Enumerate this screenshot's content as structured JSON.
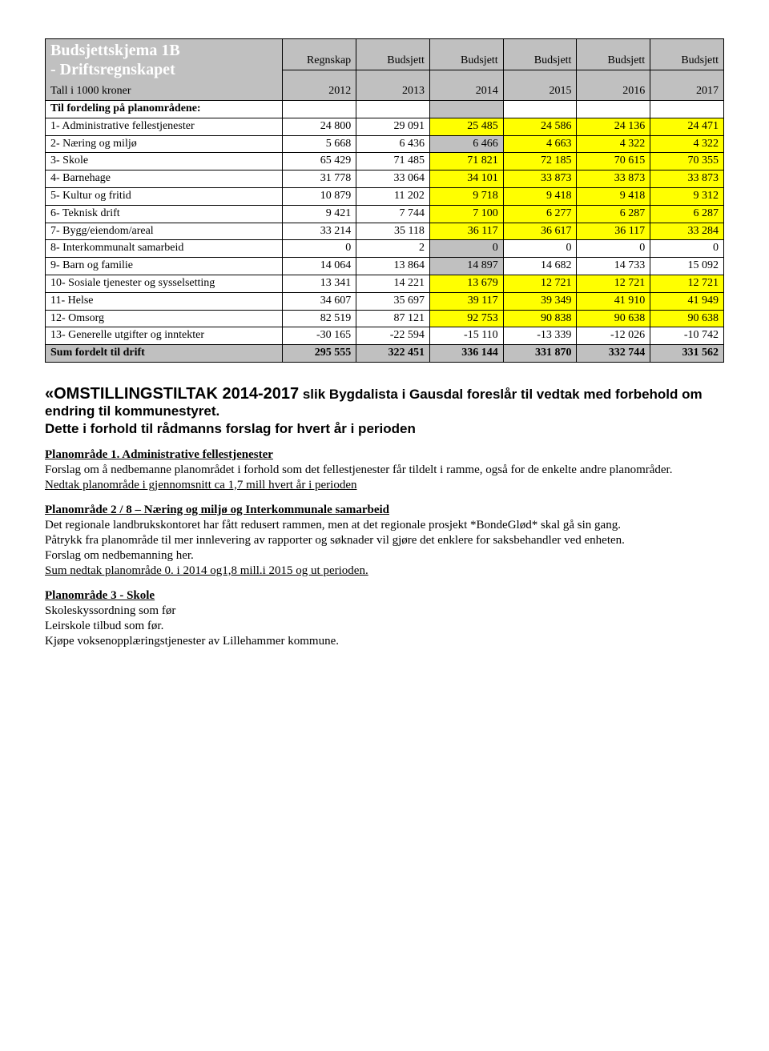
{
  "table": {
    "title_line1": "Budsjettskjema 1B",
    "title_line2": "- Driftsregnskapet",
    "subhead": "Tall i 1000 kroner",
    "col_headers": [
      {
        "l1": "Regnskap",
        "l2": "2012"
      },
      {
        "l1": "Budsjett",
        "l2": "2013"
      },
      {
        "l1": "Budsjett",
        "l2": "2014"
      },
      {
        "l1": "Budsjett",
        "l2": "2015"
      },
      {
        "l1": "Budsjett",
        "l2": "2016"
      },
      {
        "l1": "Budsjett",
        "l2": "2017"
      }
    ],
    "section_row": "Til fordeling på planområdene:",
    "rows": [
      {
        "label": "1- Administrative fellestjenester",
        "vals": [
          "24 800",
          "29 091",
          "25 485",
          "24 586",
          "24 136",
          "24 471"
        ],
        "hl": [
          false,
          false,
          true,
          true,
          true,
          true
        ]
      },
      {
        "label": "2- Næring og miljø",
        "vals": [
          "5 668",
          "6 436",
          "6 466",
          "4 663",
          "4 322",
          "4 322"
        ],
        "hl": [
          false,
          false,
          false,
          true,
          true,
          true
        ],
        "gray3": true
      },
      {
        "label": "3- Skole",
        "vals": [
          "65 429",
          "71 485",
          "71 821",
          "72 185",
          "70 615",
          "70 355"
        ],
        "hl": [
          false,
          false,
          true,
          true,
          true,
          true
        ]
      },
      {
        "label": "4- Barnehage",
        "vals": [
          "31 778",
          "33 064",
          "34 101",
          "33 873",
          "33 873",
          "33 873"
        ],
        "hl": [
          false,
          false,
          true,
          true,
          true,
          true
        ]
      },
      {
        "label": "5- Kultur og fritid",
        "vals": [
          "10 879",
          "11 202",
          "9 718",
          "9 418",
          "9 418",
          "9 312"
        ],
        "hl": [
          false,
          false,
          true,
          true,
          true,
          true
        ]
      },
      {
        "label": "6- Teknisk drift",
        "vals": [
          "9 421",
          "7 744",
          "7 100",
          "6 277",
          "6 287",
          "6 287"
        ],
        "hl": [
          false,
          false,
          true,
          true,
          true,
          true
        ]
      },
      {
        "label": "7- Bygg/eiendom/areal",
        "vals": [
          "33 214",
          "35 118",
          "36 117",
          "36 617",
          "36 117",
          "33 284"
        ],
        "hl": [
          false,
          false,
          true,
          true,
          true,
          true
        ]
      },
      {
        "label": "8- Interkommunalt samarbeid",
        "vals": [
          "0",
          "2",
          "0",
          "0",
          "0",
          "0"
        ],
        "hl": [
          false,
          false,
          false,
          false,
          false,
          false
        ],
        "gray3": true
      },
      {
        "label": "9- Barn og familie",
        "vals": [
          "14 064",
          "13 864",
          "14 897",
          "14 682",
          "14 733",
          "15 092"
        ],
        "hl": [
          false,
          false,
          false,
          false,
          false,
          false
        ],
        "gray3": true
      },
      {
        "label": "10- Sosiale tjenester og sysselsetting",
        "vals": [
          "13 341",
          "14 221",
          "13 679",
          "12 721",
          "12 721",
          "12 721"
        ],
        "hl": [
          false,
          false,
          true,
          true,
          true,
          true
        ]
      },
      {
        "label": "11- Helse",
        "vals": [
          "34 607",
          "35 697",
          "39 117",
          "39 349",
          "41 910",
          "41 949"
        ],
        "hl": [
          false,
          false,
          true,
          true,
          true,
          true
        ]
      },
      {
        "label": "12- Omsorg",
        "vals": [
          "82 519",
          "87 121",
          "92 753",
          "90 838",
          "90 638",
          "90 638"
        ],
        "hl": [
          false,
          false,
          true,
          true,
          true,
          true
        ]
      },
      {
        "label": "13- Generelle utgifter og inntekter",
        "vals": [
          "-30 165",
          "-22 594",
          "-15 110",
          "-13 339",
          "-12 026",
          "-10 742"
        ],
        "hl": [
          false,
          false,
          false,
          false,
          false,
          false
        ]
      }
    ],
    "sum_row": {
      "label": "Sum fordelt til drift",
      "vals": [
        "295 555",
        "322 451",
        "336 144",
        "331 870",
        "332 744",
        "331 562"
      ]
    }
  },
  "body": {
    "heading_strong": "«OMSTILLINGSTILTAK 2014-2017",
    "heading_rest": " slik Bygdalista i Gausdal foreslår til vedtak med forbehold om endring til kommunestyret.",
    "heading_line3": "Dette i forhold til rådmanns forslag for hvert år i perioden",
    "p1_title": "Planområde 1. Administrative fellestjenester",
    "p1_l1": "Forslag om å nedbemanne planområdet i forhold som det fellestjenester får tildelt i ramme, også for de enkelte andre planområder.",
    "p1_l2": "Nedtak planområde i gjennomsnitt ca 1,7 mill hvert år i perioden",
    "p2_title": "Planområde 2 / 8 – Næring og miljø og Interkommunale samarbeid",
    "p2_l1": "Det regionale landbrukskontoret har fått redusert rammen, men at det regionale prosjekt *BondeGlød* skal gå sin gang.",
    "p2_l2": "Påtrykk fra planområde til mer innlevering av rapporter og søknader vil gjøre det enklere for saksbehandler ved enheten.",
    "p2_l3": "Forslag om nedbemanning her.",
    "p2_l4": "Sum nedtak planområde 0. i 2014 og1,8 mill.i 2015 og ut perioden.",
    "p3_title": "Planområde 3 - Skole",
    "p3_l1": "Skoleskyssordning som før",
    "p3_l2": "Leirskole tilbud som før.",
    "p3_l3": "Kjøpe voksenopplæringstjenester av Lillehammer kommune."
  },
  "colors": {
    "gray": "#c0c0c0",
    "yellow": "#ffff00",
    "text": "#000000",
    "white_text": "#ffffff"
  }
}
